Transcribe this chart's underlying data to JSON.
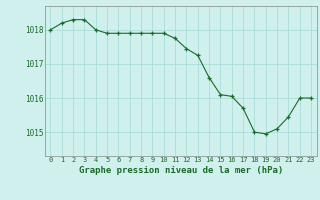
{
  "x": [
    0,
    1,
    2,
    3,
    4,
    5,
    6,
    7,
    8,
    9,
    10,
    11,
    12,
    13,
    14,
    15,
    16,
    17,
    18,
    19,
    20,
    21,
    22,
    23
  ],
  "y": [
    1018.0,
    1018.2,
    1018.3,
    1018.3,
    1018.0,
    1017.9,
    1017.9,
    1017.9,
    1017.9,
    1017.9,
    1017.9,
    1017.75,
    1017.45,
    1017.25,
    1016.6,
    1016.1,
    1016.05,
    1015.7,
    1015.0,
    1014.95,
    1015.1,
    1015.45,
    1016.0,
    1016.0
  ],
  "xlabel": "Graphe pression niveau de la mer (hPa)",
  "background_color": "#cff0ec",
  "grid_color": "#aaddd8",
  "line_color": "#1a6b2a",
  "marker_color": "#1a6b2a",
  "yticks": [
    1015,
    1016,
    1017,
    1018
  ],
  "xticks": [
    0,
    1,
    2,
    3,
    4,
    5,
    6,
    7,
    8,
    9,
    10,
    11,
    12,
    13,
    14,
    15,
    16,
    17,
    18,
    19,
    20,
    21,
    22,
    23
  ],
  "xlim": [
    -0.5,
    23.5
  ],
  "ylim": [
    1014.3,
    1018.7
  ]
}
